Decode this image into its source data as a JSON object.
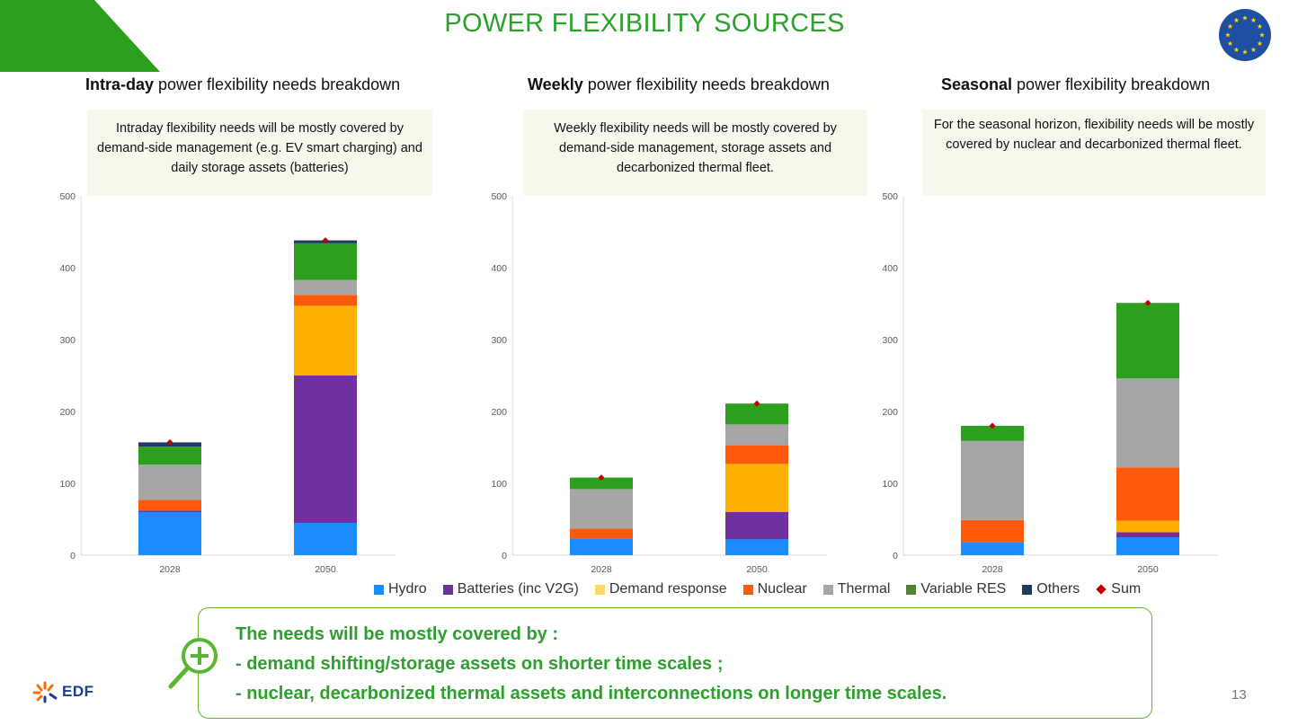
{
  "page": {
    "title": "POWER FLEXIBILITY SOURCES",
    "page_number": "13",
    "logo_text": "EDF",
    "colors": {
      "accent_green": "#2ca02c",
      "note_bg": "#f7f8ec"
    }
  },
  "panels": [
    {
      "heading_bold": "Intra-day",
      "heading_rest": " power flexibility needs breakdown",
      "note": "Intraday flexibility needs will be mostly covered by demand-side management (e.g. EV smart charging) and daily storage assets (batteries)"
    },
    {
      "heading_bold": "Weekly",
      "heading_rest": " power flexibility needs breakdown",
      "note": "Weekly flexibility needs will be mostly covered by demand-side management, storage assets and decarbonized thermal fleet."
    },
    {
      "heading_bold": "Seasonal",
      "heading_rest": " power flexibility breakdown",
      "note": "For the seasonal horizon, flexibility needs will be mostly covered by nuclear and decarbonized thermal fleet."
    }
  ],
  "legend": [
    {
      "label": "Hydro",
      "color": "#1a8cff",
      "icon": "square"
    },
    {
      "label": "Batteries (inc V2G)",
      "color": "#7030a0",
      "icon": "square"
    },
    {
      "label": "Demand response",
      "color": "#ffd966",
      "icon": "square"
    },
    {
      "label": "Nuclear",
      "color": "#ff5a0a",
      "icon": "square"
    },
    {
      "label": "Thermal",
      "color": "#a6a6a6",
      "icon": "square"
    },
    {
      "label": "Variable RES",
      "color": "#548235",
      "icon": "square"
    },
    {
      "label": "Others",
      "color": "#203864",
      "icon": "square"
    },
    {
      "label": "Sum",
      "color": "#c00000",
      "icon": "diamond"
    }
  ],
  "summary": {
    "line1": "The needs will be mostly covered by :",
    "line2": "- demand shifting/storage assets on shorter time scales ;",
    "line3": "- nuclear, decarbonized thermal assets and interconnections on longer time scales."
  },
  "chart_data": [
    {
      "type": "bar",
      "stacked": true,
      "categories": [
        "2028",
        "2050"
      ],
      "ylim": [
        0,
        500
      ],
      "yticks": [
        "0",
        "100",
        "200",
        "300",
        "400",
        "500"
      ],
      "grid": false,
      "series": [
        {
          "name": "Hydro",
          "color": "#1a8cff",
          "values": [
            60,
            45
          ]
        },
        {
          "name": "Batteries (inc V2G)",
          "color": "#7030a0",
          "values": [
            2,
            205
          ]
        },
        {
          "name": "Demand response",
          "color": "#ffb000",
          "values": [
            0,
            97
          ]
        },
        {
          "name": "Nuclear",
          "color": "#ff5a0a",
          "values": [
            15,
            15
          ]
        },
        {
          "name": "Thermal",
          "color": "#a6a6a6",
          "values": [
            49,
            21
          ]
        },
        {
          "name": "Variable RES",
          "color": "#2ca01c",
          "values": [
            25,
            51
          ]
        },
        {
          "name": "Others",
          "color": "#203864",
          "values": [
            6,
            4
          ]
        }
      ],
      "sum": [
        157,
        438
      ]
    },
    {
      "type": "bar",
      "stacked": true,
      "categories": [
        "2028",
        "2050"
      ],
      "ylim": [
        0,
        500
      ],
      "yticks": [
        "0",
        "100",
        "200",
        "300",
        "400",
        "500"
      ],
      "grid": false,
      "series": [
        {
          "name": "Hydro",
          "color": "#1a8cff",
          "values": [
            23,
            22
          ]
        },
        {
          "name": "Batteries (inc V2G)",
          "color": "#7030a0",
          "values": [
            0,
            38
          ]
        },
        {
          "name": "Demand response",
          "color": "#ffb000",
          "values": [
            0,
            67
          ]
        },
        {
          "name": "Nuclear",
          "color": "#ff5a0a",
          "values": [
            14,
            26
          ]
        },
        {
          "name": "Thermal",
          "color": "#a6a6a6",
          "values": [
            55,
            29
          ]
        },
        {
          "name": "Variable RES",
          "color": "#2ca01c",
          "values": [
            16,
            29
          ]
        },
        {
          "name": "Others",
          "color": "#203864",
          "values": [
            0,
            0
          ]
        }
      ],
      "sum": [
        108,
        211
      ]
    },
    {
      "type": "bar",
      "stacked": true,
      "categories": [
        "2028",
        "2050"
      ],
      "ylim": [
        0,
        500
      ],
      "yticks": [
        "0",
        "100",
        "200",
        "300",
        "400",
        "500"
      ],
      "grid": false,
      "series": [
        {
          "name": "Hydro",
          "color": "#1a8cff",
          "values": [
            18,
            25
          ]
        },
        {
          "name": "Batteries (inc V2G)",
          "color": "#7030a0",
          "values": [
            0,
            7
          ]
        },
        {
          "name": "Demand response",
          "color": "#ffb000",
          "values": [
            0,
            16
          ]
        },
        {
          "name": "Nuclear",
          "color": "#ff5a0a",
          "values": [
            31,
            74
          ]
        },
        {
          "name": "Thermal",
          "color": "#a6a6a6",
          "values": [
            110,
            124
          ]
        },
        {
          "name": "Variable RES",
          "color": "#2ca01c",
          "values": [
            21,
            105
          ]
        },
        {
          "name": "Others",
          "color": "#203864",
          "values": [
            0,
            0
          ]
        }
      ],
      "sum": [
        180,
        351
      ]
    }
  ]
}
